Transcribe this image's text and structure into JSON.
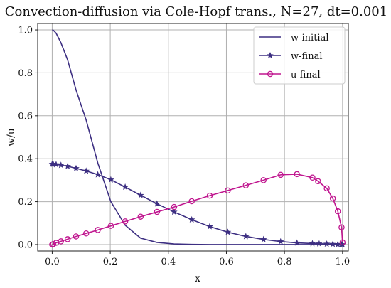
{
  "chart_data": {
    "type": "line",
    "title": "Convection-diffusion via Cole-Hopf trans., N=27, dt=0.001",
    "xlabel": "x",
    "ylabel": "w/u",
    "xlim": [
      -0.05,
      1.02
    ],
    "ylim": [
      -0.03,
      1.03
    ],
    "xticks": [
      0.0,
      0.2,
      0.4,
      0.6,
      0.8,
      1.0
    ],
    "xtick_labels": [
      "0.0",
      "0.2",
      "0.4",
      "0.6",
      "0.8",
      "1.0"
    ],
    "yticks": [
      0.0,
      0.2,
      0.4,
      0.6,
      0.8,
      1.0
    ],
    "ytick_labels": [
      "0.0",
      "0.2",
      "0.4",
      "0.6",
      "0.8",
      "1.0"
    ],
    "grid": true,
    "legend_position": "top-right",
    "series": [
      {
        "name": "w-initial",
        "color": "#3d2f82",
        "marker": "none",
        "x": [
          0.0,
          0.0034,
          0.0135,
          0.0302,
          0.0532,
          0.0822,
          0.117,
          0.1571,
          0.202,
          0.2514,
          0.3045,
          0.3609,
          0.4198,
          0.4806,
          0.5425,
          0.6049,
          0.6669,
          0.7278,
          0.7868,
          0.8431,
          0.8963,
          0.9457,
          0.9906,
          1.0
        ],
        "y": [
          1.0,
          0.999,
          0.985,
          0.94,
          0.86,
          0.72,
          0.58,
          0.38,
          0.2,
          0.09,
          0.03,
          0.01,
          0.003,
          0.001,
          0.0,
          0.0,
          0.0,
          0.0,
          0.0,
          0.0,
          0.0,
          0.0,
          0.0,
          0.0
        ]
      },
      {
        "name": "w-final",
        "color": "#3d2f82",
        "marker": "star",
        "x": [
          0.0,
          0.0034,
          0.0135,
          0.0302,
          0.0532,
          0.0822,
          0.117,
          0.1571,
          0.202,
          0.2514,
          0.3045,
          0.3609,
          0.4198,
          0.4806,
          0.5425,
          0.6049,
          0.6669,
          0.7278,
          0.7868,
          0.8431,
          0.8963,
          0.9194,
          0.9457,
          0.9665,
          0.9838,
          0.9966,
          1.0
        ],
        "y": [
          0.375,
          0.375,
          0.373,
          0.37,
          0.365,
          0.355,
          0.343,
          0.326,
          0.302,
          0.268,
          0.23,
          0.19,
          0.152,
          0.116,
          0.084,
          0.058,
          0.038,
          0.024,
          0.014,
          0.008,
          0.005,
          0.004,
          0.003,
          0.002,
          0.001,
          0.0005,
          0.0
        ]
      },
      {
        "name": "u-final",
        "color": "#c0168f",
        "marker": "circle",
        "x": [
          0.0,
          0.0034,
          0.0135,
          0.0302,
          0.0532,
          0.0822,
          0.117,
          0.1571,
          0.202,
          0.2514,
          0.3045,
          0.3609,
          0.4198,
          0.4806,
          0.5425,
          0.6049,
          0.6669,
          0.7278,
          0.7868,
          0.8431,
          0.8963,
          0.9157,
          0.9457,
          0.9665,
          0.9838,
          0.9966,
          1.0
        ],
        "y": [
          0.0,
          0.002,
          0.008,
          0.015,
          0.025,
          0.038,
          0.052,
          0.068,
          0.087,
          0.108,
          0.13,
          0.152,
          0.175,
          0.202,
          0.228,
          0.252,
          0.276,
          0.3,
          0.325,
          0.328,
          0.312,
          0.295,
          0.262,
          0.215,
          0.155,
          0.08,
          0.01
        ]
      }
    ]
  }
}
